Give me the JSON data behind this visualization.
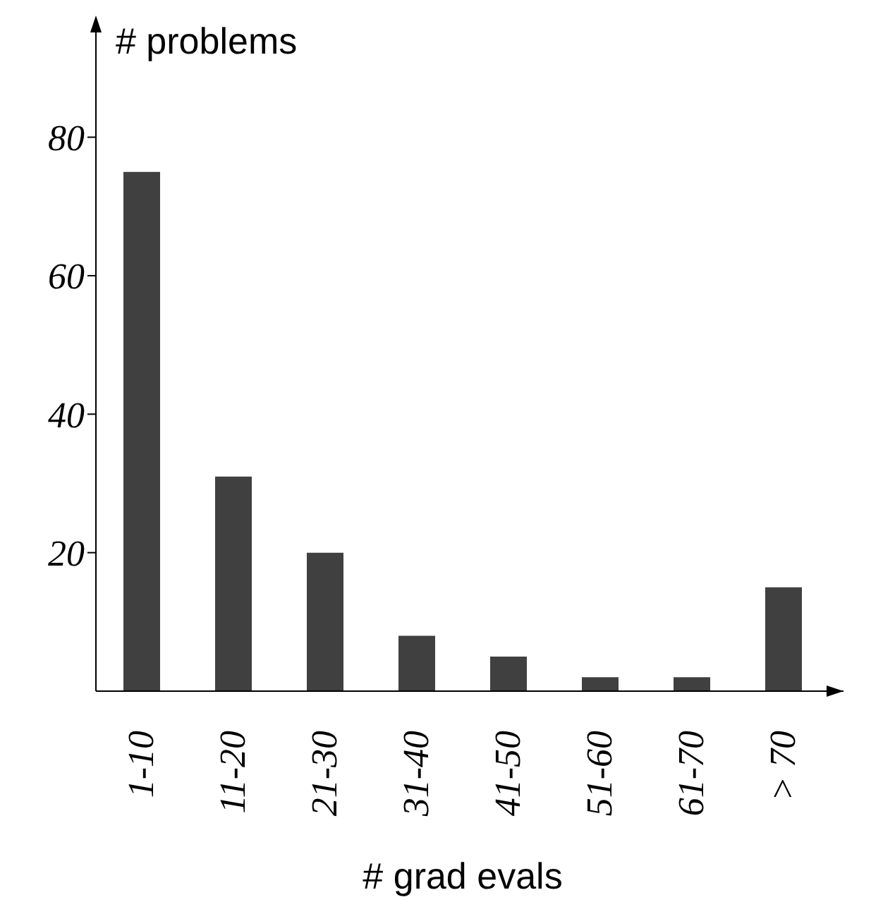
{
  "chart_data": {
    "type": "bar",
    "xlabel": "# grad evals",
    "ylabel": "# problems",
    "categories": [
      "1-10",
      "11-20",
      "21-30",
      "31-40",
      "41-50",
      "51-60",
      "61-70",
      "> 70"
    ],
    "values": [
      75,
      31,
      20,
      8,
      5,
      2,
      2,
      15
    ],
    "color": "#404040",
    "ylim": [
      0,
      88
    ],
    "yticks": [
      20,
      40,
      60,
      80
    ],
    "grid": false,
    "legend": false
  }
}
